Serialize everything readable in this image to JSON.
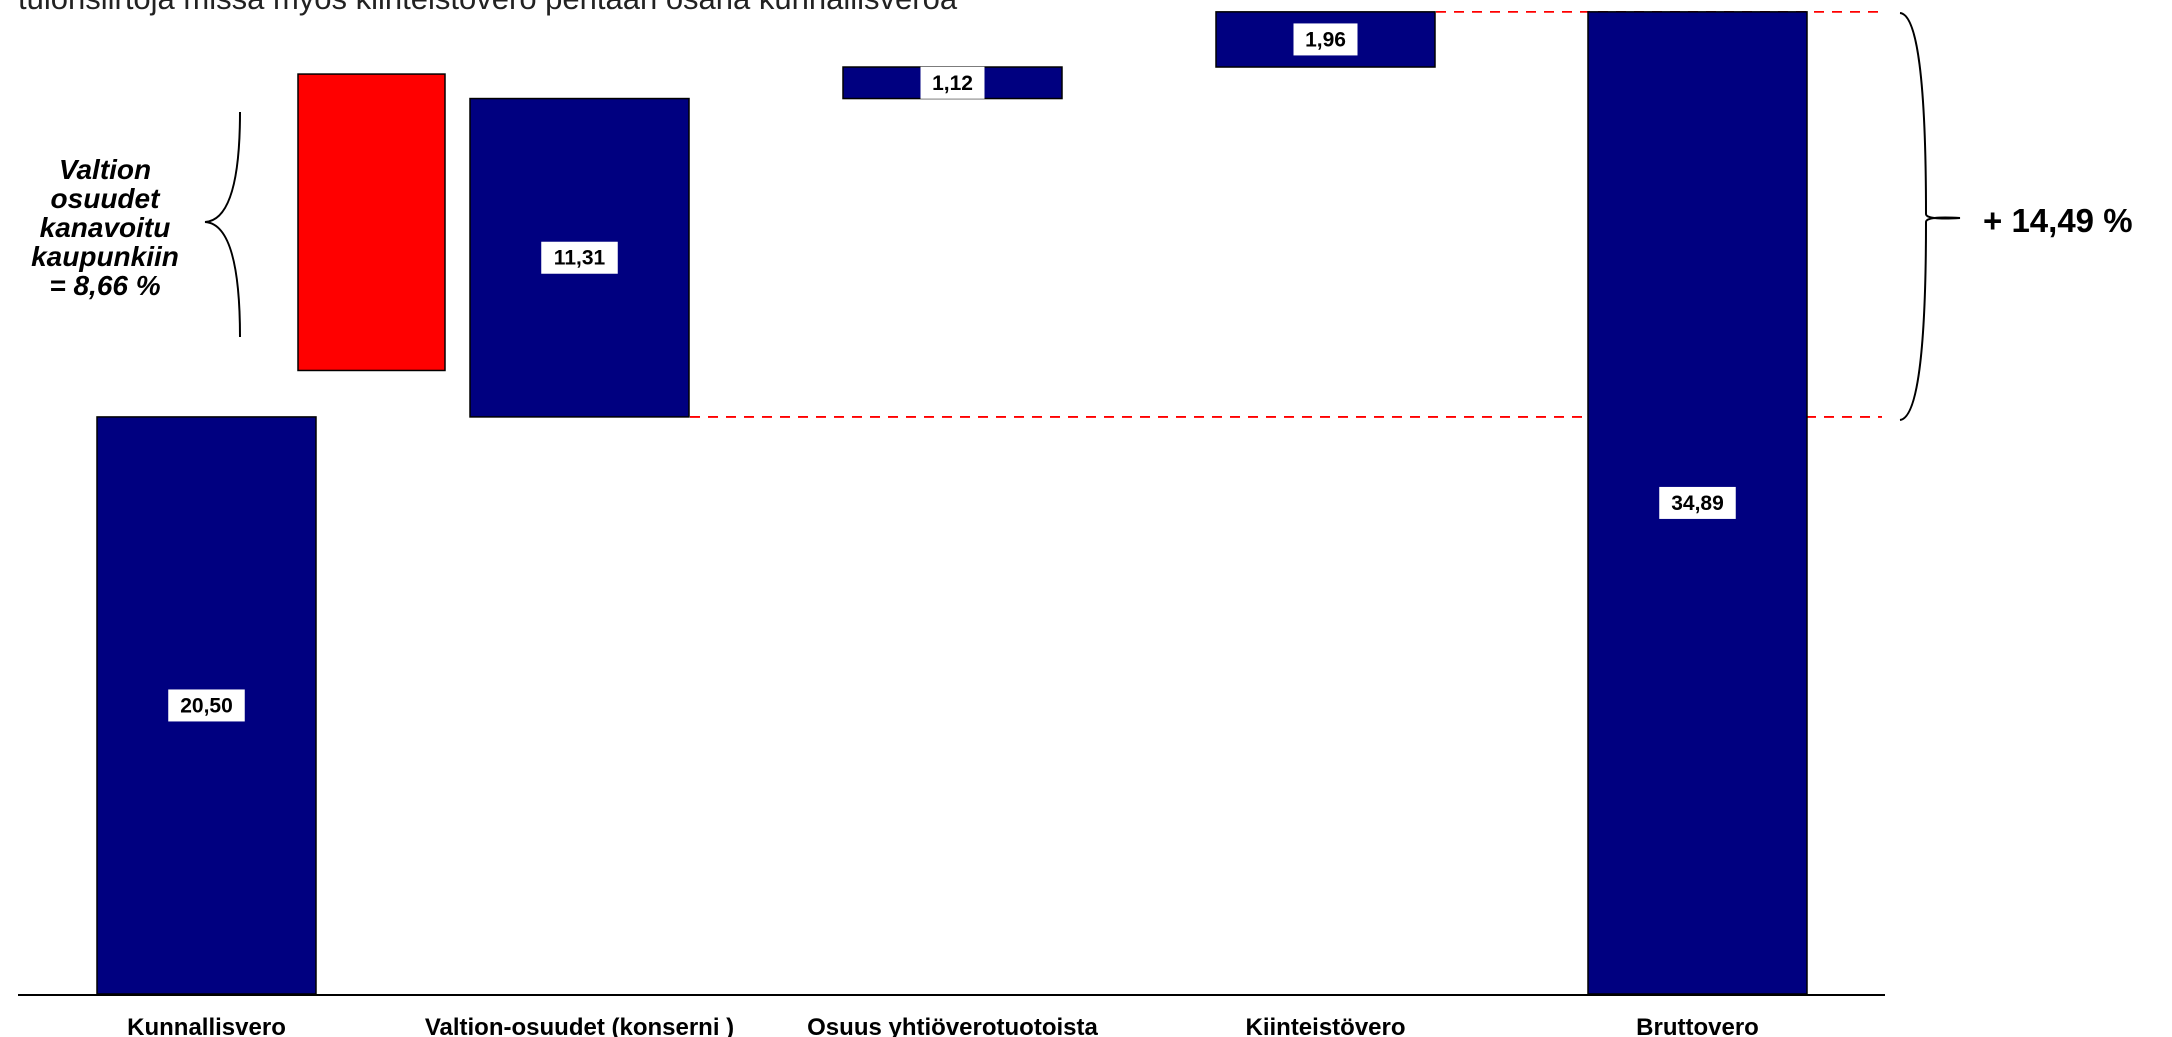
{
  "header": {
    "text": "tulonsiirtoja missä myös kiinteistövero peritään osana kunnallisveroa"
  },
  "chart_data": {
    "type": "bar",
    "subtype": "waterfall",
    "categories": [
      "Kunnallisvero",
      "Valtion-osuudet (konserni )",
      "Osuus yhtiöverotuotoista",
      "Kiinteistövero",
      "Bruttovero"
    ],
    "bars": [
      {
        "category": "Kunnallisvero",
        "base": 0,
        "value": 20.5,
        "label": "20,50",
        "color": "#000080"
      },
      {
        "category": "Valtion-osuudet (konserni )",
        "base": 20.5,
        "value": 11.31,
        "label": "11,31",
        "color": "#000080"
      },
      {
        "category": "Osuus yhtiöverotuotoista",
        "base": 31.81,
        "value": 1.12,
        "label": "1,12",
        "color": "#000080"
      },
      {
        "category": "Kiinteistövero",
        "base": 32.93,
        "value": 1.96,
        "label": "1,96",
        "color": "#000080"
      },
      {
        "category": "Bruttovero",
        "base": 0,
        "value": 34.89,
        "label": "34,89",
        "color": "#000080"
      }
    ],
    "highlight_bar": {
      "base": 22.15,
      "value": 10.53,
      "color": "#FF0000"
    },
    "annotations": {
      "valtion_note": [
        "Valtion",
        "osuudet",
        "kanavoitu",
        "kaupunkiin",
        "= 8,66 %"
      ],
      "total_note": "+ 14,49 %"
    },
    "reference_lines": [
      20.5,
      34.89
    ],
    "reference_line_color": "#FF0000",
    "ylim": [
      0,
      35.1
    ],
    "grid": false,
    "legend": "none"
  }
}
